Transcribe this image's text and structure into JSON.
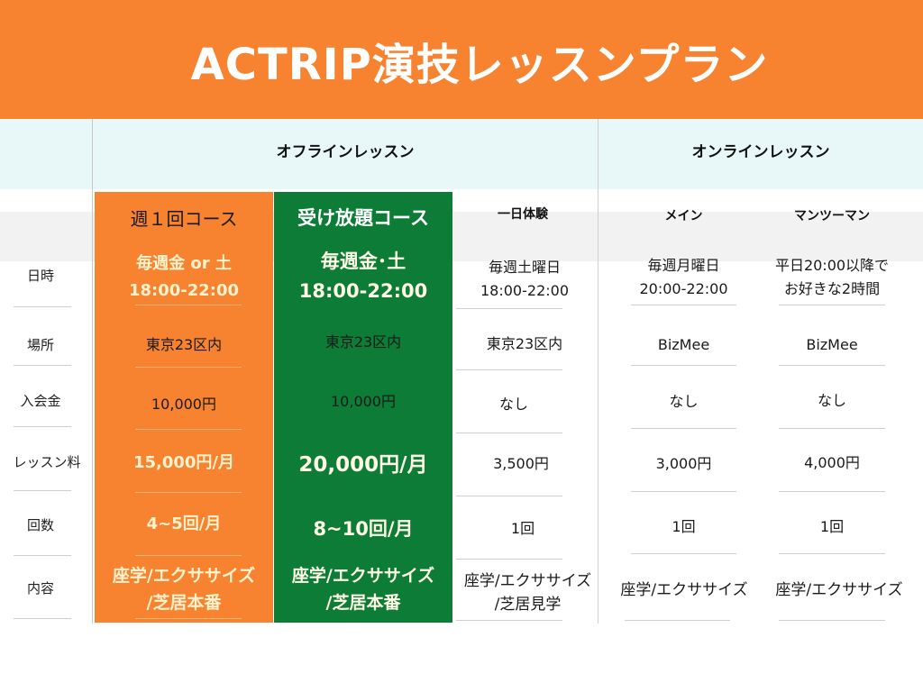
{
  "title": "ACTRIP演技レッスンプラン",
  "categories": {
    "offline": "オフラインレッスン",
    "online": "オンラインレッスン"
  },
  "columns": [
    "週１回コース",
    "受け放題コース",
    "一日体験",
    "メイン",
    "マンツーマン"
  ],
  "row_labels": [
    "日時",
    "場所",
    "入会金",
    "レッスン料",
    "回数",
    "内容"
  ],
  "rows": {
    "datetime": [
      [
        "毎週金 or 土",
        "18:00-22:00"
      ],
      [
        "毎週金･土",
        "18:00-22:00"
      ],
      [
        "毎週土曜日",
        "18:00-22:00"
      ],
      [
        "毎週月曜日",
        "20:00-22:00"
      ],
      [
        "平日20:00以降で",
        "お好きな2時間"
      ]
    ],
    "place": [
      "東京23区内",
      "東京23区内",
      "東京23区内",
      "BizMee",
      "BizMee"
    ],
    "entry_fee": [
      "10,000円",
      "10,000円",
      "なし",
      "なし",
      "なし"
    ],
    "lesson_fee": [
      "15,000円/月",
      "20,000円/月",
      "3,500円",
      "3,000円",
      "4,000円"
    ],
    "count": [
      "4~5回/月",
      "8~10回/月",
      "1回",
      "1回",
      "1回"
    ],
    "content": [
      [
        "座学/エクササイズ",
        "/芝居本番"
      ],
      [
        "座学/エクササイズ",
        "/芝居本番"
      ],
      [
        "座学/エクササイズ",
        "/芝居見学"
      ],
      [
        "座学/エクササイズ"
      ],
      [
        "座学/エクササイズ"
      ]
    ]
  },
  "colors": {
    "header": "#f78331",
    "orange_course": "#f78331",
    "green_course": "#0c7c37",
    "category_band": "#e8f8f8"
  }
}
